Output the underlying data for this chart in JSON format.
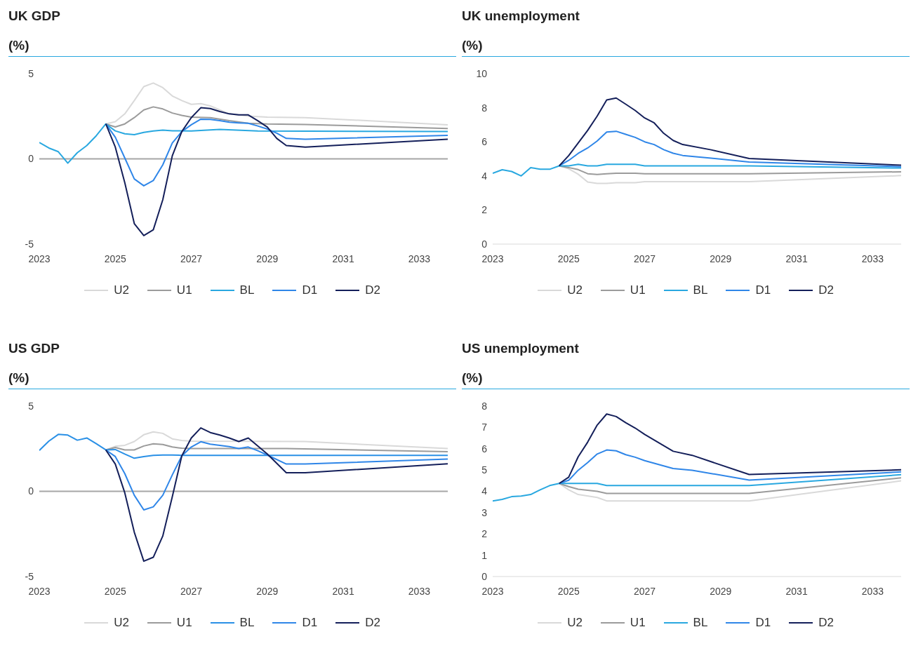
{
  "chart_data": [
    {
      "type": "line",
      "title": "UK GDP",
      "ylabel": "(%)",
      "xlim": [
        2023,
        2033.75
      ],
      "xticks": [
        2023,
        2025,
        2027,
        2029,
        2031,
        2033
      ],
      "ylim": [
        -5,
        5
      ],
      "yticks": [
        -5,
        0,
        5
      ],
      "legend": "bottom",
      "ref_lines": [
        {
          "axis": "y",
          "value": 0,
          "color": "#a6a6a6"
        }
      ],
      "series": [
        {
          "name": "U2",
          "color": "#d9d9d9",
          "x": [
            2024.75,
            2025,
            2025.25,
            2025.5,
            2025.75,
            2026,
            2026.25,
            2026.5,
            2026.75,
            2027,
            2027.25,
            2027.5,
            2027.75,
            2028,
            2028.5,
            2029,
            2030,
            2033.75
          ],
          "values": [
            2.05,
            2.18,
            2.64,
            3.42,
            4.24,
            4.45,
            4.18,
            3.69,
            3.42,
            3.2,
            3.24,
            3.11,
            2.87,
            2.64,
            2.51,
            2.45,
            2.42,
            2.0
          ]
        },
        {
          "name": "U1",
          "color": "#9b9b9b",
          "x": [
            2024.75,
            2025,
            2025.25,
            2025.5,
            2025.75,
            2026,
            2026.25,
            2026.5,
            2026.75,
            2027,
            2027.5,
            2028,
            2028.5,
            2029,
            2030,
            2033.75
          ],
          "values": [
            2.05,
            1.87,
            2.05,
            2.42,
            2.87,
            3.05,
            2.93,
            2.69,
            2.55,
            2.45,
            2.42,
            2.24,
            2.09,
            2.05,
            2.02,
            1.78
          ]
        },
        {
          "name": "BL",
          "color": "#29a8e0",
          "x": [
            2023,
            2023.25,
            2023.5,
            2023.75,
            2024,
            2024.25,
            2024.5,
            2024.75,
            2025,
            2025.25,
            2025.5,
            2025.75,
            2026,
            2026.25,
            2026.5,
            2027,
            2027.75,
            2028.75,
            2033.75
          ],
          "values": [
            0.96,
            0.64,
            0.42,
            -0.25,
            0.36,
            0.78,
            1.36,
            2.05,
            1.64,
            1.47,
            1.42,
            1.55,
            1.64,
            1.69,
            1.65,
            1.64,
            1.73,
            1.64,
            1.6
          ]
        },
        {
          "name": "D1",
          "color": "#2f86e8",
          "x": [
            2024.75,
            2025,
            2025.25,
            2025.5,
            2025.75,
            2026,
            2026.25,
            2026.5,
            2026.75,
            2027,
            2027.25,
            2027.5,
            2027.75,
            2028,
            2028.25,
            2028.5,
            2028.75,
            2029,
            2029.25,
            2029.5,
            2030,
            2033.75
          ],
          "values": [
            2.05,
            1.27,
            0.05,
            -1.18,
            -1.58,
            -1.27,
            -0.35,
            0.93,
            1.6,
            2.0,
            2.33,
            2.31,
            2.24,
            2.15,
            2.11,
            2.09,
            1.93,
            1.75,
            1.51,
            1.2,
            1.15,
            1.38
          ]
        },
        {
          "name": "D2",
          "color": "#141f5a",
          "x": [
            2024.75,
            2025,
            2025.25,
            2025.5,
            2025.75,
            2026,
            2026.25,
            2026.5,
            2026.75,
            2027,
            2027.25,
            2027.5,
            2027.75,
            2028,
            2028.25,
            2028.5,
            2028.75,
            2029,
            2029.25,
            2029.5,
            2030,
            2033.75
          ],
          "values": [
            2.05,
            0.69,
            -1.4,
            -3.8,
            -4.5,
            -4.16,
            -2.4,
            0.18,
            1.6,
            2.42,
            3.0,
            2.95,
            2.78,
            2.64,
            2.58,
            2.58,
            2.24,
            1.87,
            1.2,
            0.78,
            0.69,
            1.15
          ]
        }
      ]
    },
    {
      "type": "line",
      "title": "UK unemployment",
      "ylabel": "(%)",
      "xlim": [
        2023,
        2033.75
      ],
      "xticks": [
        2023,
        2025,
        2027,
        2029,
        2031,
        2033
      ],
      "ylim": [
        0,
        10
      ],
      "yticks": [
        0,
        2,
        4,
        6,
        8,
        10
      ],
      "legend": "bottom",
      "series": [
        {
          "name": "U2",
          "color": "#d9d9d9",
          "x": [
            2024.75,
            2025,
            2025.25,
            2025.5,
            2025.75,
            2026,
            2026.25,
            2026.75,
            2027,
            2029.75,
            2033.75
          ],
          "values": [
            4.59,
            4.42,
            4.1,
            3.64,
            3.56,
            3.56,
            3.6,
            3.6,
            3.66,
            3.66,
            4.02
          ]
        },
        {
          "name": "U1",
          "color": "#9b9b9b",
          "x": [
            2024.75,
            2025,
            2025.25,
            2025.5,
            2025.75,
            2026,
            2026.25,
            2026.75,
            2027,
            2029.75,
            2033.75
          ],
          "values": [
            4.59,
            4.49,
            4.37,
            4.13,
            4.08,
            4.13,
            4.16,
            4.16,
            4.13,
            4.13,
            4.24
          ]
        },
        {
          "name": "BL",
          "color": "#29a8e0",
          "x": [
            2023,
            2023.25,
            2023.5,
            2023.75,
            2024,
            2024.25,
            2024.5,
            2024.75,
            2025,
            2025.25,
            2025.5,
            2025.75,
            2026,
            2026.75,
            2027,
            2029.75,
            2033.75
          ],
          "values": [
            4.15,
            4.36,
            4.26,
            4.0,
            4.49,
            4.39,
            4.39,
            4.59,
            4.59,
            4.68,
            4.59,
            4.59,
            4.68,
            4.68,
            4.59,
            4.59,
            4.46
          ]
        },
        {
          "name": "D1",
          "color": "#2f86e8",
          "x": [
            2024.75,
            2025,
            2025.25,
            2025.5,
            2025.75,
            2026,
            2026.25,
            2026.5,
            2026.75,
            2027,
            2027.25,
            2027.5,
            2027.75,
            2028,
            2028.75,
            2029.75,
            2033.75
          ],
          "values": [
            4.59,
            4.91,
            5.32,
            5.64,
            6.05,
            6.57,
            6.62,
            6.44,
            6.26,
            6.0,
            5.84,
            5.54,
            5.33,
            5.2,
            5.04,
            4.81,
            4.54
          ]
        },
        {
          "name": "D2",
          "color": "#141f5a",
          "x": [
            2024.75,
            2025,
            2025.25,
            2025.5,
            2025.75,
            2026,
            2026.25,
            2026.5,
            2026.75,
            2027,
            2027.25,
            2027.5,
            2027.75,
            2028,
            2028.75,
            2029.75,
            2033.75
          ],
          "values": [
            4.59,
            5.19,
            5.93,
            6.67,
            7.51,
            8.46,
            8.57,
            8.21,
            7.84,
            7.4,
            7.11,
            6.5,
            6.08,
            5.84,
            5.53,
            5.02,
            4.63
          ]
        }
      ]
    },
    {
      "type": "line",
      "title": "US GDP",
      "ylabel": "(%)",
      "xlim": [
        2023,
        2033.75
      ],
      "xticks": [
        2023,
        2025,
        2027,
        2029,
        2031,
        2033
      ],
      "ylim": [
        -5,
        5
      ],
      "yticks": [
        -5,
        0,
        5
      ],
      "legend": "bottom",
      "ref_lines": [
        {
          "axis": "y",
          "value": 0,
          "color": "#a6a6a6"
        }
      ],
      "series": [
        {
          "name": "U2",
          "color": "#d9d9d9",
          "x": [
            2024.75,
            2025,
            2025.25,
            2025.5,
            2025.75,
            2026,
            2026.25,
            2026.5,
            2026.75,
            2027,
            2030,
            2033.75
          ],
          "values": [
            2.43,
            2.64,
            2.7,
            2.92,
            3.32,
            3.49,
            3.4,
            3.08,
            2.98,
            2.94,
            2.92,
            2.51
          ]
        },
        {
          "name": "U1",
          "color": "#9b9b9b",
          "x": [
            2024.75,
            2025,
            2025.25,
            2025.5,
            2025.75,
            2026,
            2026.25,
            2026.5,
            2026.75,
            2027,
            2029.5,
            2033.75
          ],
          "values": [
            2.43,
            2.57,
            2.43,
            2.43,
            2.66,
            2.79,
            2.75,
            2.6,
            2.53,
            2.51,
            2.51,
            2.32
          ]
        },
        {
          "name": "BL",
          "color": "#2a90e6",
          "x": [
            2023,
            2023.25,
            2023.5,
            2023.75,
            2024,
            2024.25,
            2024.5,
            2024.75,
            2025,
            2025.25,
            2025.5,
            2025.75,
            2026,
            2026.25,
            2026.5,
            2026.75,
            2033.75
          ],
          "values": [
            2.4,
            2.94,
            3.34,
            3.3,
            3.0,
            3.13,
            2.79,
            2.43,
            2.45,
            2.19,
            1.94,
            2.04,
            2.11,
            2.13,
            2.13,
            2.11,
            2.11
          ]
        },
        {
          "name": "D1",
          "color": "#2f86e8",
          "x": [
            2024.75,
            2025,
            2025.25,
            2025.5,
            2025.75,
            2026,
            2026.25,
            2026.5,
            2026.75,
            2027,
            2027.25,
            2027.5,
            2027.75,
            2028,
            2028.25,
            2028.5,
            2028.75,
            2029,
            2029.5,
            2030,
            2033.75
          ],
          "values": [
            2.43,
            2.04,
            1.04,
            -0.23,
            -1.09,
            -0.91,
            -0.23,
            0.96,
            2.08,
            2.6,
            2.91,
            2.77,
            2.7,
            2.62,
            2.51,
            2.6,
            2.38,
            2.13,
            1.6,
            1.6,
            1.89
          ]
        },
        {
          "name": "D2",
          "color": "#141f5a",
          "x": [
            2024.75,
            2025,
            2025.25,
            2025.5,
            2025.75,
            2026,
            2026.25,
            2026.5,
            2026.75,
            2027,
            2027.25,
            2027.5,
            2027.75,
            2028,
            2028.25,
            2028.5,
            2029,
            2029.5,
            2030,
            2033.75
          ],
          "values": [
            2.43,
            1.6,
            -0.09,
            -2.4,
            -4.1,
            -3.87,
            -2.62,
            -0.32,
            2.08,
            3.13,
            3.72,
            3.45,
            3.3,
            3.13,
            2.92,
            3.13,
            2.19,
            1.09,
            1.09,
            1.62
          ]
        }
      ]
    },
    {
      "type": "line",
      "title": "US unemployment",
      "ylabel": "(%)",
      "xlim": [
        2023,
        2033.75
      ],
      "xticks": [
        2023,
        2025,
        2027,
        2029,
        2031,
        2033
      ],
      "ylim": [
        0,
        8
      ],
      "yticks": [
        0,
        1,
        2,
        3,
        4,
        5,
        6,
        7,
        8
      ],
      "legend": "bottom",
      "series": [
        {
          "name": "U2",
          "color": "#d9d9d9",
          "x": [
            2024.75,
            2025,
            2025.25,
            2025.75,
            2026,
            2029.75,
            2033.75
          ],
          "values": [
            4.37,
            4.07,
            3.85,
            3.71,
            3.55,
            3.55,
            4.49
          ]
        },
        {
          "name": "U1",
          "color": "#9b9b9b",
          "x": [
            2024.75,
            2025,
            2025.25,
            2025.75,
            2026,
            2029.75,
            2033.75
          ],
          "values": [
            4.37,
            4.22,
            4.1,
            4.0,
            3.9,
            3.9,
            4.63
          ]
        },
        {
          "name": "BL",
          "color": "#29a8e0",
          "x": [
            2023,
            2023.25,
            2023.5,
            2023.75,
            2024,
            2024.25,
            2024.5,
            2024.75,
            2025,
            2025.75,
            2026,
            2029.75,
            2033.75
          ],
          "values": [
            3.55,
            3.62,
            3.75,
            3.78,
            3.85,
            4.07,
            4.27,
            4.37,
            4.37,
            4.37,
            4.27,
            4.27,
            4.78
          ]
        },
        {
          "name": "D1",
          "color": "#2f86e8",
          "x": [
            2024.75,
            2025,
            2025.25,
            2025.5,
            2025.75,
            2026,
            2026.25,
            2026.5,
            2026.75,
            2027,
            2027.75,
            2028.25,
            2029.75,
            2033.75
          ],
          "values": [
            4.37,
            4.52,
            4.99,
            5.35,
            5.75,
            5.94,
            5.9,
            5.72,
            5.6,
            5.44,
            5.07,
            4.99,
            4.53,
            4.91
          ]
        },
        {
          "name": "D2",
          "color": "#141f5a",
          "x": [
            2024.75,
            2025,
            2025.25,
            2025.5,
            2025.75,
            2026,
            2026.25,
            2026.5,
            2026.75,
            2027,
            2027.75,
            2028.25,
            2029.75,
            2033.75
          ],
          "values": [
            4.37,
            4.66,
            5.62,
            6.31,
            7.11,
            7.63,
            7.51,
            7.22,
            6.97,
            6.67,
            5.88,
            5.69,
            4.79,
            5.01
          ]
        }
      ]
    }
  ]
}
